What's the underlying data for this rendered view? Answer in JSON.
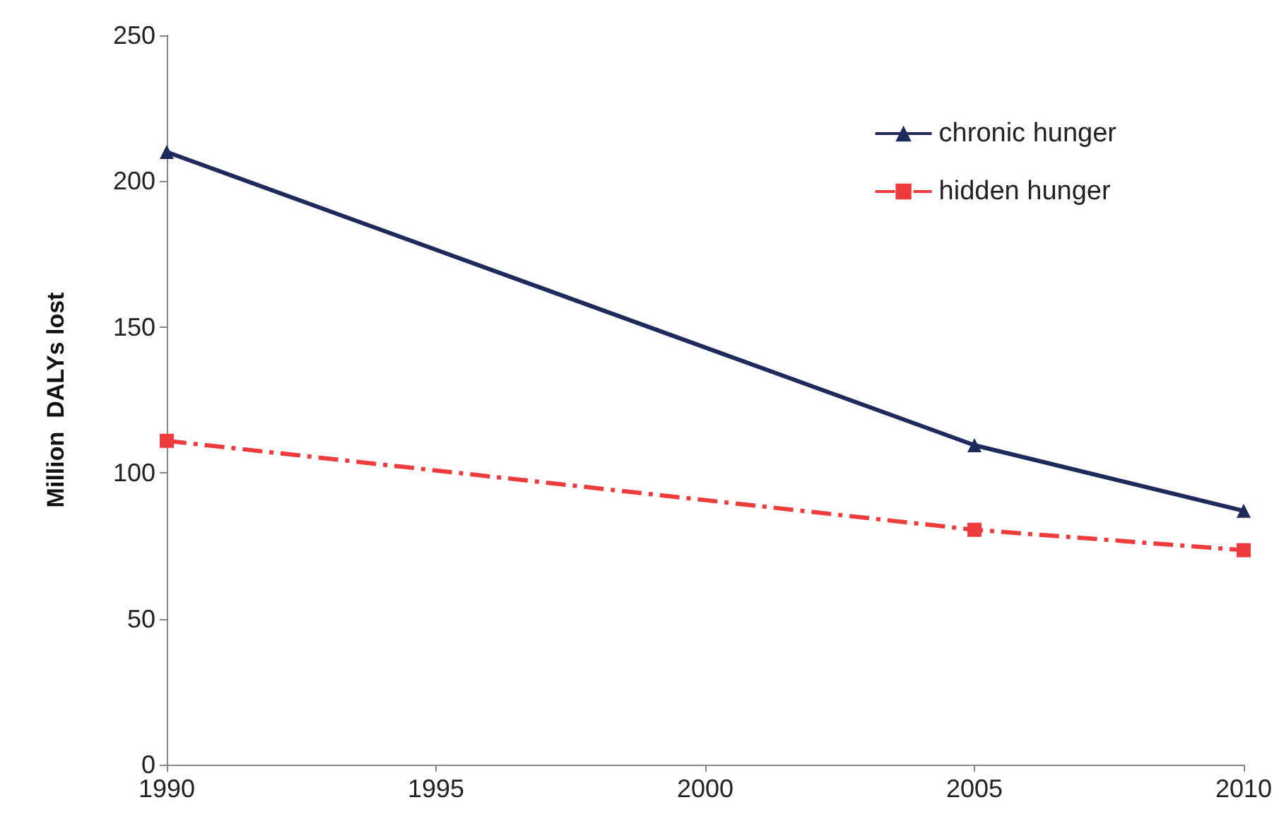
{
  "chart_data": {
    "type": "line",
    "ylabel": "Million  DALYs lost",
    "x": [
      1990,
      2005,
      2010
    ],
    "series": [
      {
        "name": "chronic hunger",
        "color": "#1f2a5c",
        "values": [
          210,
          109.5,
          87
        ],
        "marker": "triangle",
        "line_style": "solid"
      },
      {
        "name": "hidden hunger",
        "color": "#ee3b3b",
        "values": [
          111,
          80.5,
          73.5
        ],
        "marker": "square",
        "line_style": "dashed"
      }
    ],
    "xlim": [
      1990,
      2010
    ],
    "xticks": [
      1990,
      1995,
      2000,
      2005,
      2010
    ],
    "ylim": [
      0,
      250
    ],
    "yticks": [
      0,
      50,
      100,
      150,
      200,
      250
    ],
    "grid": false,
    "legend": "top right"
  }
}
